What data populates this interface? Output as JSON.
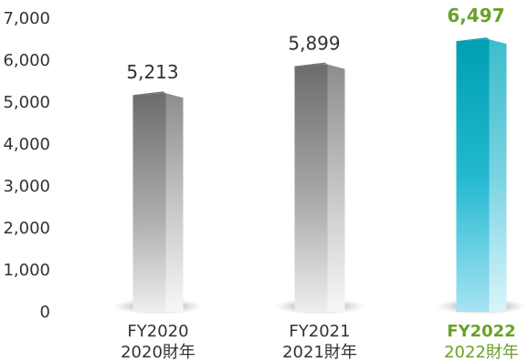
{
  "chart_data": {
    "type": "bar",
    "categories": [
      "FY2020",
      "FY2021",
      "FY2022"
    ],
    "categories_secondary": [
      "2020財年",
      "2021財年",
      "2022財年"
    ],
    "values": [
      5213,
      5899,
      6497
    ],
    "value_labels": [
      "5,213",
      "5,899",
      "6,497"
    ],
    "highlight_index": 2,
    "ylim": [
      0,
      7000
    ],
    "yticks": [
      0,
      1000,
      2000,
      3000,
      4000,
      5000,
      6000,
      7000
    ],
    "ytick_labels": [
      "0",
      "1,000",
      "2,000",
      "3,000",
      "4,000",
      "5,000",
      "6,000",
      "7,000"
    ],
    "grid": false,
    "colors": {
      "bar_dark": "#6d6e70",
      "bar_light": "#f0f0f0",
      "bar_highlight_dark": "#00a5b5",
      "bar_highlight_light": "#b8ecf6",
      "label_highlight": "#6aa12a",
      "text": "#333333"
    }
  }
}
